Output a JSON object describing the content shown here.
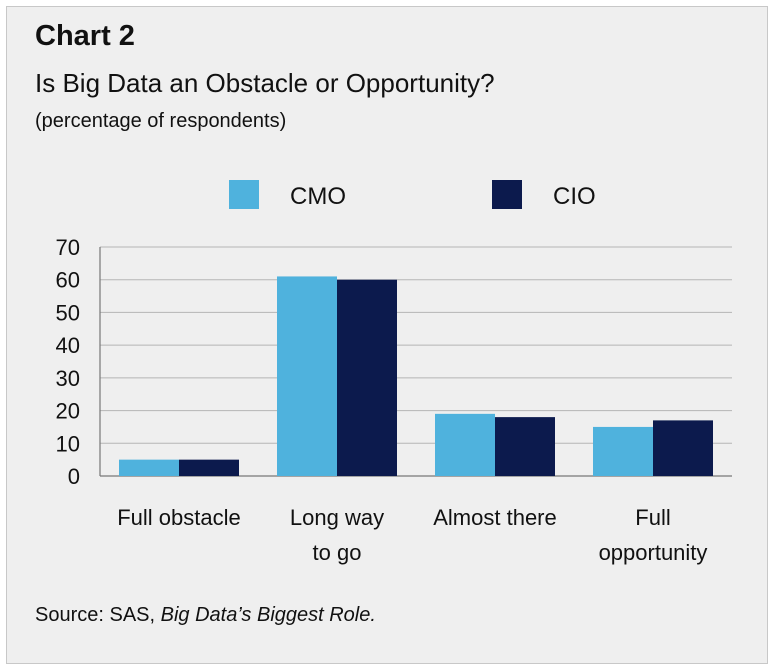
{
  "chart_data": {
    "type": "bar",
    "label": "Chart 2",
    "title": "Is Big Data an Obstacle or Opportunity?",
    "subtitle": "(percentage of respondents)",
    "categories": [
      [
        "Full obstacle"
      ],
      [
        "Long way",
        "to go"
      ],
      [
        "Almost there"
      ],
      [
        "Full",
        "opportunity"
      ]
    ],
    "series": [
      {
        "name": "CMO",
        "color": "#4fb2dd",
        "values": [
          5,
          61,
          19,
          15
        ]
      },
      {
        "name": "CIO",
        "color": "#0c1a4d",
        "values": [
          5,
          60,
          18,
          17
        ]
      }
    ],
    "ylim": [
      0,
      70
    ],
    "yticks": [
      0,
      10,
      20,
      30,
      40,
      50,
      60,
      70
    ],
    "grid": true,
    "legend": "top"
  },
  "source": {
    "prefix": "Source: SAS, ",
    "title": "Big Data’s Biggest Role."
  }
}
